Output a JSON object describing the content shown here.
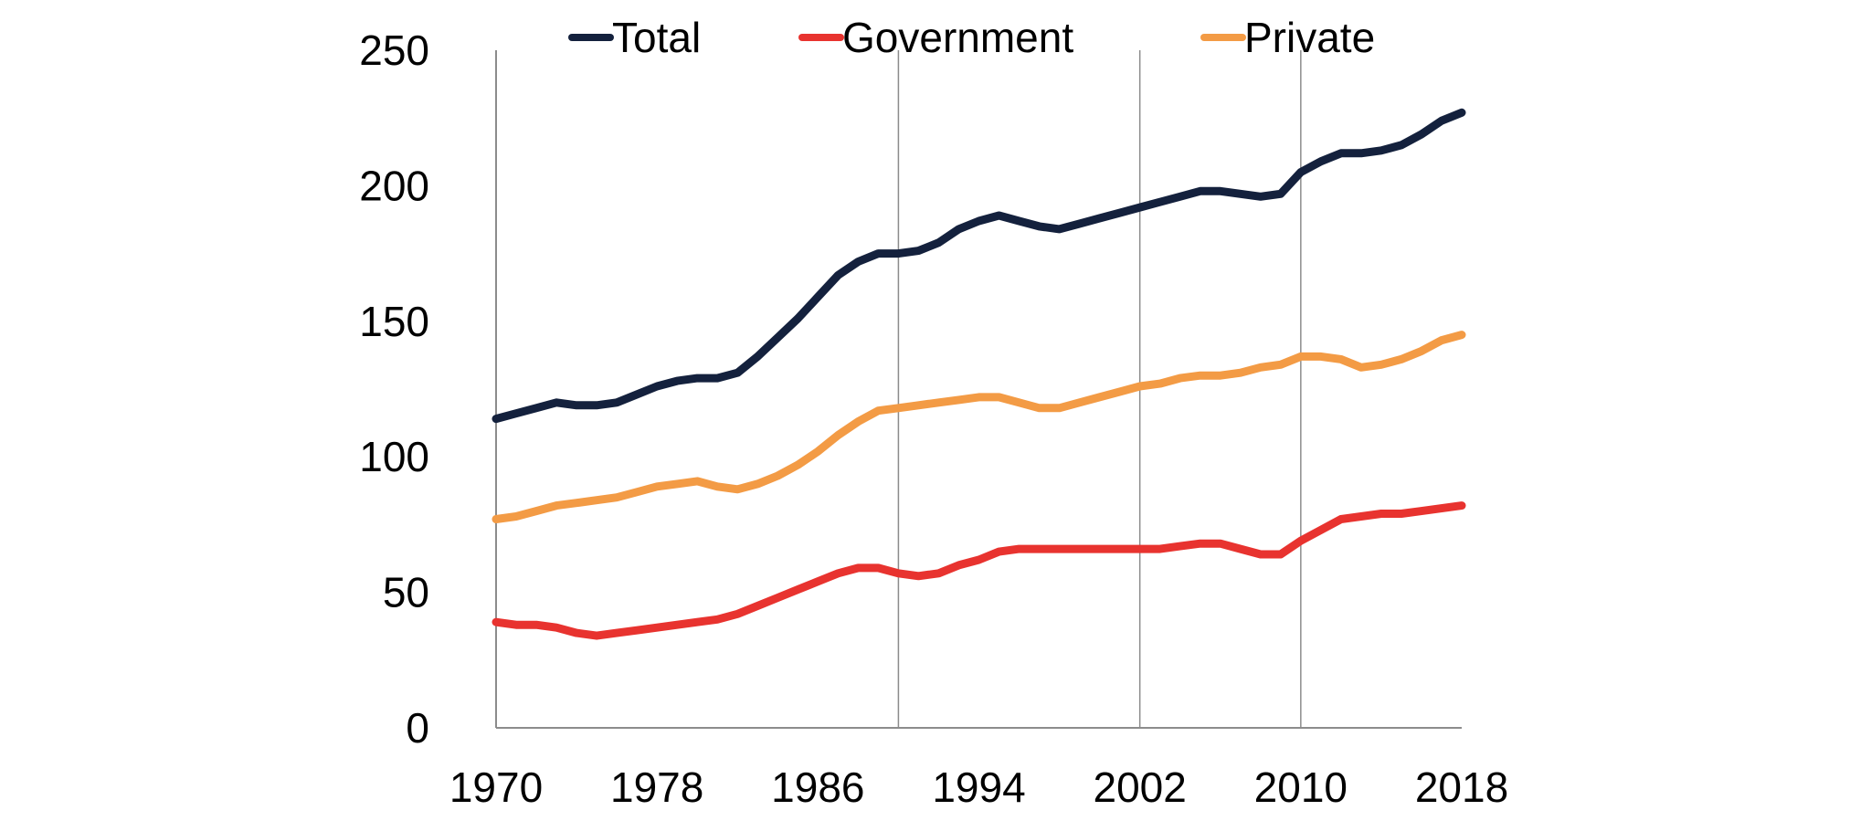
{
  "chart_data": {
    "type": "line",
    "title": "",
    "xlabel": "",
    "ylabel": "",
    "ylim": [
      0,
      250
    ],
    "y_ticks": [
      "0",
      "50",
      "100",
      "150",
      "200",
      "250"
    ],
    "x_ticks": [
      "1970",
      "1978",
      "1986",
      "1994",
      "2002",
      "2010",
      "2018"
    ],
    "vertical_gridlines_at": [
      1990,
      2002,
      2010
    ],
    "grid": "vertical lines only",
    "legend_position": "top",
    "x": [
      1970,
      1971,
      1972,
      1973,
      1974,
      1975,
      1976,
      1977,
      1978,
      1979,
      1980,
      1981,
      1982,
      1983,
      1984,
      1985,
      1986,
      1987,
      1988,
      1989,
      1990,
      1991,
      1992,
      1993,
      1994,
      1995,
      1996,
      1997,
      1998,
      1999,
      2000,
      2001,
      2002,
      2003,
      2004,
      2005,
      2006,
      2007,
      2008,
      2009,
      2010,
      2011,
      2012,
      2013,
      2014,
      2015,
      2016,
      2017,
      2018
    ],
    "series": [
      {
        "name": "Total",
        "color": "#14213d",
        "values": [
          114,
          116,
          118,
          120,
          119,
          119,
          120,
          123,
          126,
          128,
          129,
          129,
          131,
          137,
          144,
          151,
          159,
          167,
          172,
          175,
          175,
          176,
          179,
          184,
          187,
          189,
          187,
          185,
          184,
          186,
          188,
          190,
          192,
          194,
          196,
          198,
          198,
          197,
          196,
          197,
          205,
          209,
          212,
          212,
          213,
          215,
          219,
          224,
          227
        ]
      },
      {
        "name": "Government",
        "color": "#e8332f",
        "values": [
          39,
          38,
          38,
          37,
          35,
          34,
          35,
          36,
          37,
          38,
          39,
          40,
          42,
          45,
          48,
          51,
          54,
          57,
          59,
          59,
          57,
          56,
          57,
          60,
          62,
          65,
          66,
          66,
          66,
          66,
          66,
          66,
          66,
          66,
          67,
          68,
          68,
          66,
          64,
          64,
          69,
          73,
          77,
          78,
          79,
          79,
          80,
          81,
          82
        ]
      },
      {
        "name": "Private",
        "color": "#f39b45",
        "values": [
          77,
          78,
          80,
          82,
          83,
          84,
          85,
          87,
          89,
          90,
          91,
          89,
          88,
          90,
          93,
          97,
          102,
          108,
          113,
          117,
          118,
          119,
          120,
          121,
          122,
          122,
          120,
          118,
          118,
          120,
          122,
          124,
          126,
          127,
          129,
          130,
          130,
          131,
          133,
          134,
          137,
          137,
          136,
          133,
          134,
          136,
          139,
          143,
          145
        ]
      }
    ]
  }
}
